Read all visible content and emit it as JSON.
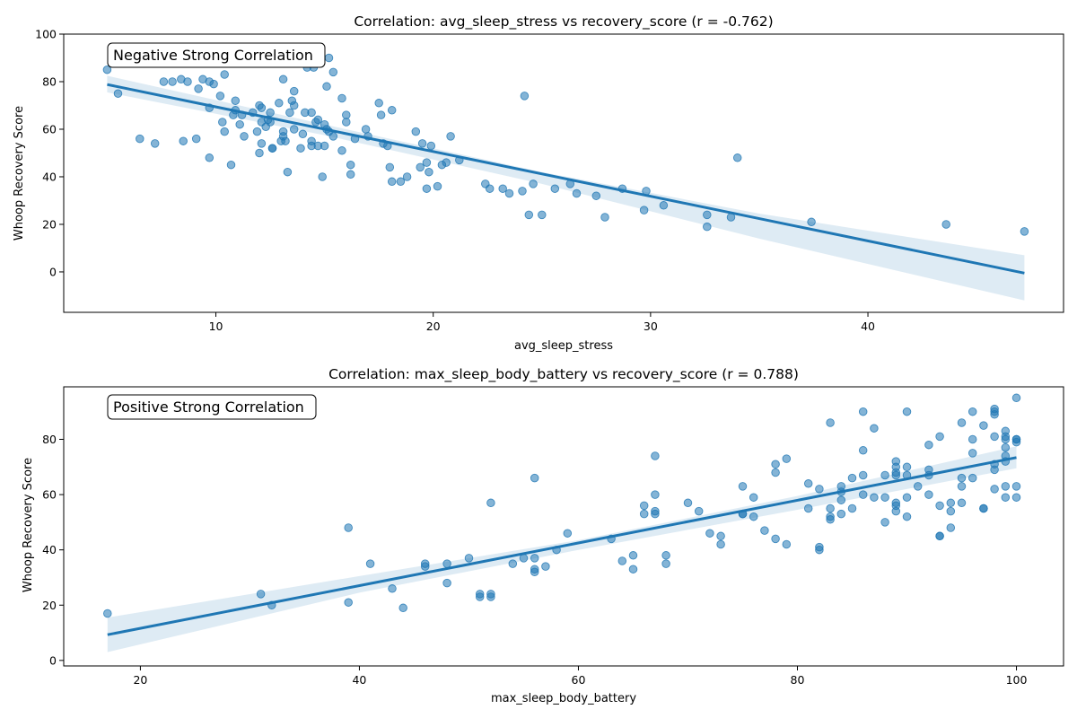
{
  "chart_data": [
    {
      "type": "scatter",
      "title": "Correlation: avg_sleep_stress vs recovery_score (r = -0.762)",
      "xlabel": "avg_sleep_stress",
      "ylabel": "Whoop Recovery Score",
      "annotation": "Negative Strong Correlation",
      "xlim": [
        3,
        49
      ],
      "ylim": [
        -17,
        100
      ],
      "xticks": [
        10,
        20,
        30,
        40
      ],
      "yticks": [
        0,
        20,
        40,
        60,
        80,
        100
      ],
      "grid": false,
      "regression": {
        "x0": 5,
        "y0": 78.8,
        "x1": 47.2,
        "y1": -0.5
      },
      "ci": {
        "x": [
          5,
          15,
          25,
          35,
          47.2
        ],
        "lower": [
          75.5,
          57.5,
          37,
          14,
          -12
        ],
        "upper": [
          82.5,
          62,
          42,
          24.5,
          7
        ]
      },
      "color": "#1f77b4",
      "points": [
        [
          5,
          85
        ],
        [
          5.5,
          75
        ],
        [
          6.5,
          56
        ],
        [
          7.2,
          54
        ],
        [
          7.6,
          80
        ],
        [
          8,
          80
        ],
        [
          8.4,
          81
        ],
        [
          8.5,
          55
        ],
        [
          8.7,
          80
        ],
        [
          9.1,
          56
        ],
        [
          9.2,
          77
        ],
        [
          9.4,
          81
        ],
        [
          9.7,
          48
        ],
        [
          9.7,
          69
        ],
        [
          9.7,
          80
        ],
        [
          9.9,
          79
        ],
        [
          10.2,
          74
        ],
        [
          10.3,
          63
        ],
        [
          10.4,
          59
        ],
        [
          10.4,
          83
        ],
        [
          10.7,
          45
        ],
        [
          10.8,
          66
        ],
        [
          10.9,
          68
        ],
        [
          10.9,
          72
        ],
        [
          11.1,
          62
        ],
        [
          11.2,
          66
        ],
        [
          11.3,
          57
        ],
        [
          11.7,
          67
        ],
        [
          11.9,
          59
        ],
        [
          12,
          50
        ],
        [
          12,
          70
        ],
        [
          12.1,
          63
        ],
        [
          12.1,
          54
        ],
        [
          12.1,
          69
        ],
        [
          12.3,
          61
        ],
        [
          12.4,
          64
        ],
        [
          12.5,
          63
        ],
        [
          12.5,
          67
        ],
        [
          12.6,
          52
        ],
        [
          12.6,
          52
        ],
        [
          12.9,
          71
        ],
        [
          13,
          55
        ],
        [
          13.1,
          59
        ],
        [
          13.1,
          57
        ],
        [
          13.1,
          81
        ],
        [
          13.2,
          55
        ],
        [
          13.3,
          42
        ],
        [
          13.4,
          67
        ],
        [
          13.5,
          72
        ],
        [
          13.6,
          76
        ],
        [
          13.6,
          70
        ],
        [
          13.6,
          60
        ],
        [
          13.9,
          52
        ],
        [
          14,
          58
        ],
        [
          14.1,
          67
        ],
        [
          14.2,
          86
        ],
        [
          14.4,
          55
        ],
        [
          14.4,
          53
        ],
        [
          14.4,
          67
        ],
        [
          14.5,
          86
        ],
        [
          14.6,
          63
        ],
        [
          14.7,
          53
        ],
        [
          14.7,
          64
        ],
        [
          14.9,
          40
        ],
        [
          15,
          53
        ],
        [
          15,
          62
        ],
        [
          15.1,
          60
        ],
        [
          15.1,
          78
        ],
        [
          15.2,
          59
        ],
        [
          15.2,
          90
        ],
        [
          15.4,
          84
        ],
        [
          15.4,
          57
        ],
        [
          15.8,
          51
        ],
        [
          15.8,
          73
        ],
        [
          16,
          66
        ],
        [
          16,
          63
        ],
        [
          16.2,
          45
        ],
        [
          16.2,
          41
        ],
        [
          16.4,
          56
        ],
        [
          16.9,
          60
        ],
        [
          17,
          57
        ],
        [
          17.5,
          71
        ],
        [
          17.6,
          66
        ],
        [
          17.7,
          54
        ],
        [
          17.9,
          53
        ],
        [
          18,
          44
        ],
        [
          18.1,
          68
        ],
        [
          18.1,
          38
        ],
        [
          18.5,
          38
        ],
        [
          18.8,
          40
        ],
        [
          19.2,
          59
        ],
        [
          19.4,
          44
        ],
        [
          19.5,
          54
        ],
        [
          19.7,
          35
        ],
        [
          19.7,
          46
        ],
        [
          19.8,
          42
        ],
        [
          19.9,
          53
        ],
        [
          20.2,
          36
        ],
        [
          20.4,
          45
        ],
        [
          20.6,
          46
        ],
        [
          20.8,
          57
        ],
        [
          21.2,
          47
        ],
        [
          22.4,
          37
        ],
        [
          22.6,
          35
        ],
        [
          23.2,
          35
        ],
        [
          23.5,
          33
        ],
        [
          24.1,
          34
        ],
        [
          24.2,
          74
        ],
        [
          24.4,
          24
        ],
        [
          24.6,
          37
        ],
        [
          25,
          24
        ],
        [
          25.6,
          35
        ],
        [
          26.3,
          37
        ],
        [
          26.6,
          33
        ],
        [
          27.5,
          32
        ],
        [
          27.9,
          23
        ],
        [
          28.7,
          35
        ],
        [
          29.7,
          26
        ],
        [
          29.8,
          34
        ],
        [
          30.6,
          28
        ],
        [
          32.6,
          24
        ],
        [
          32.6,
          19
        ],
        [
          33.7,
          23
        ],
        [
          34,
          48
        ],
        [
          37.4,
          21
        ],
        [
          43.6,
          20
        ],
        [
          47.2,
          17
        ]
      ]
    },
    {
      "type": "scatter",
      "title": "Correlation: max_sleep_body_battery vs recovery_score (r = 0.788)",
      "xlabel": "max_sleep_body_battery",
      "ylabel": "Whoop Recovery Score",
      "annotation": "Positive Strong Correlation",
      "xlim": [
        13,
        104.3
      ],
      "ylim": [
        -2,
        99
      ],
      "xticks": [
        20,
        40,
        60,
        80,
        100
      ],
      "yticks": [
        0,
        20,
        40,
        60,
        80
      ],
      "grid": false,
      "regression": {
        "x0": 17,
        "y0": 9.3,
        "x1": 100,
        "y1": 73.4
      },
      "ci": {
        "x": [
          17,
          40,
          60,
          80,
          100
        ],
        "lower": [
          3,
          24.5,
          40,
          54.5,
          69.5
        ],
        "upper": [
          15.5,
          30.5,
          43.5,
          59.5,
          77.5
        ]
      },
      "color": "#1f77b4",
      "points": [
        [
          17,
          17
        ],
        [
          31,
          24
        ],
        [
          32,
          20
        ],
        [
          39,
          48
        ],
        [
          39,
          21
        ],
        [
          41,
          35
        ],
        [
          43,
          26
        ],
        [
          44,
          19
        ],
        [
          46,
          35
        ],
        [
          46,
          34
        ],
        [
          48,
          35
        ],
        [
          48,
          28
        ],
        [
          50,
          37
        ],
        [
          51,
          24
        ],
        [
          51,
          23
        ],
        [
          52,
          24
        ],
        [
          52,
          23
        ],
        [
          52,
          57
        ],
        [
          54,
          35
        ],
        [
          55,
          37
        ],
        [
          56,
          37
        ],
        [
          56,
          33
        ],
        [
          56,
          32
        ],
        [
          56,
          66
        ],
        [
          57,
          34
        ],
        [
          58,
          40
        ],
        [
          59,
          46
        ],
        [
          63,
          44
        ],
        [
          64,
          36
        ],
        [
          65,
          38
        ],
        [
          65,
          33
        ],
        [
          66,
          56
        ],
        [
          66,
          53
        ],
        [
          67,
          74
        ],
        [
          67,
          60
        ],
        [
          67,
          54
        ],
        [
          67,
          53
        ],
        [
          68,
          38
        ],
        [
          68,
          35
        ],
        [
          70,
          57
        ],
        [
          71,
          54
        ],
        [
          72,
          46
        ],
        [
          73,
          45
        ],
        [
          73,
          42
        ],
        [
          75,
          63
        ],
        [
          75,
          53
        ],
        [
          75,
          53
        ],
        [
          76,
          59
        ],
        [
          76,
          52
        ],
        [
          77,
          47
        ],
        [
          78,
          71
        ],
        [
          78,
          68
        ],
        [
          78,
          44
        ],
        [
          79,
          73
        ],
        [
          79,
          42
        ],
        [
          81,
          64
        ],
        [
          81,
          55
        ],
        [
          82,
          62
        ],
        [
          82,
          41
        ],
        [
          82,
          40
        ],
        [
          83,
          86
        ],
        [
          83,
          55
        ],
        [
          83,
          52
        ],
        [
          83,
          51
        ],
        [
          84,
          63
        ],
        [
          84,
          61
        ],
        [
          84,
          58
        ],
        [
          84,
          53
        ],
        [
          85,
          66
        ],
        [
          85,
          55
        ],
        [
          86,
          90
        ],
        [
          86,
          76
        ],
        [
          86,
          67
        ],
        [
          86,
          60
        ],
        [
          87,
          84
        ],
        [
          87,
          59
        ],
        [
          88,
          67
        ],
        [
          88,
          59
        ],
        [
          88,
          50
        ],
        [
          89,
          72
        ],
        [
          89,
          70
        ],
        [
          89,
          68
        ],
        [
          89,
          67
        ],
        [
          89,
          57
        ],
        [
          89,
          56
        ],
        [
          89,
          54
        ],
        [
          90,
          90
        ],
        [
          90,
          70
        ],
        [
          90,
          67
        ],
        [
          90,
          59
        ],
        [
          90,
          52
        ],
        [
          91,
          63
        ],
        [
          92,
          78
        ],
        [
          92,
          69
        ],
        [
          92,
          67
        ],
        [
          92,
          60
        ],
        [
          93,
          81
        ],
        [
          93,
          56
        ],
        [
          93,
          45
        ],
        [
          93,
          45
        ],
        [
          94,
          57
        ],
        [
          94,
          54
        ],
        [
          94,
          48
        ],
        [
          95,
          86
        ],
        [
          95,
          66
        ],
        [
          95,
          63
        ],
        [
          95,
          57
        ],
        [
          96,
          90
        ],
        [
          96,
          80
        ],
        [
          96,
          75
        ],
        [
          96,
          66
        ],
        [
          97,
          85
        ],
        [
          97,
          55
        ],
        [
          97,
          55
        ],
        [
          98,
          91
        ],
        [
          98,
          90
        ],
        [
          98,
          89
        ],
        [
          98,
          81
        ],
        [
          98,
          71
        ],
        [
          98,
          69
        ],
        [
          98,
          62
        ],
        [
          99,
          83
        ],
        [
          99,
          81
        ],
        [
          99,
          80
        ],
        [
          99,
          77
        ],
        [
          99,
          74
        ],
        [
          99,
          72
        ],
        [
          99,
          63
        ],
        [
          99,
          59
        ],
        [
          100,
          95
        ],
        [
          100,
          80
        ],
        [
          100,
          80
        ],
        [
          100,
          79
        ],
        [
          100,
          63
        ],
        [
          100,
          59
        ]
      ]
    }
  ]
}
